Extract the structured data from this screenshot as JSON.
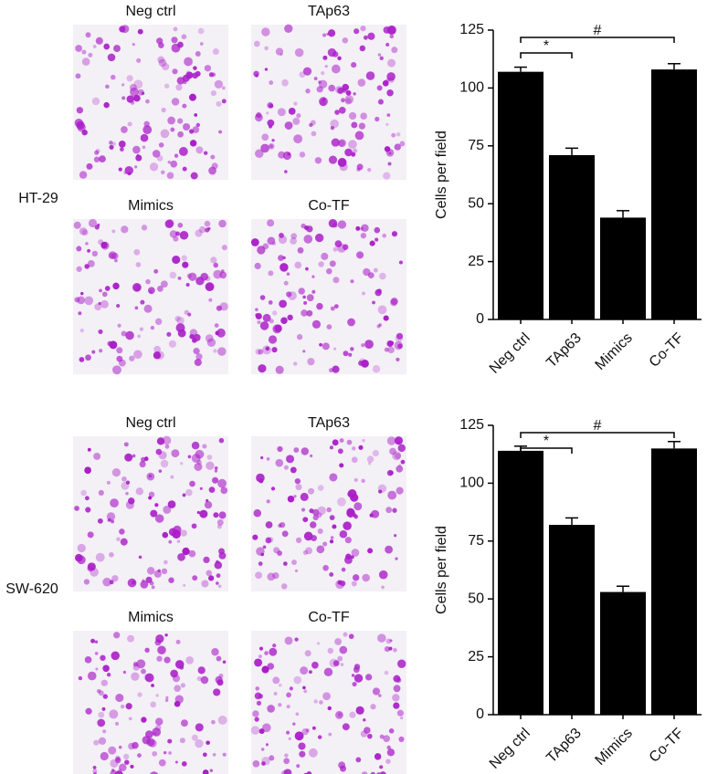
{
  "panels": [
    {
      "cell_line": "HT-29",
      "images": [
        "Neg ctrl",
        "TAp63",
        "Mimics",
        "Co-TF"
      ]
    },
    {
      "cell_line": "SW-620",
      "images": [
        "Neg ctrl",
        "TAp63",
        "Mimics",
        "Co-TF"
      ]
    }
  ],
  "chart_data": [
    {
      "type": "bar",
      "ylabel": "Cells per field",
      "categories": [
        "Neg ctrl",
        "TAp63",
        "Mimics",
        "Co-TF"
      ],
      "values": [
        107,
        71,
        44,
        108
      ],
      "errors": [
        2,
        3,
        3,
        2.5
      ],
      "color": "#000000",
      "ylim": [
        0,
        125
      ],
      "yticks": [
        0,
        25,
        50,
        75,
        100,
        125
      ],
      "significance": [
        {
          "label": "*",
          "between": [
            "Neg ctrl",
            "TAp63"
          ]
        },
        {
          "label": "#",
          "between": [
            "Neg ctrl",
            "Co-TF"
          ]
        }
      ]
    },
    {
      "type": "bar",
      "ylabel": "Cells per field",
      "categories": [
        "Neg ctrl",
        "TAp63",
        "Mimics",
        "Co-TF"
      ],
      "values": [
        114,
        82,
        53,
        115
      ],
      "errors": [
        2,
        3,
        2.5,
        3
      ],
      "color": "#000000",
      "ylim": [
        0,
        125
      ],
      "yticks": [
        0,
        25,
        50,
        75,
        100,
        125
      ],
      "significance": [
        {
          "label": "*",
          "between": [
            "Neg ctrl",
            "TAp63"
          ]
        },
        {
          "label": "#",
          "between": [
            "Neg ctrl",
            "Co-TF"
          ]
        }
      ]
    }
  ]
}
